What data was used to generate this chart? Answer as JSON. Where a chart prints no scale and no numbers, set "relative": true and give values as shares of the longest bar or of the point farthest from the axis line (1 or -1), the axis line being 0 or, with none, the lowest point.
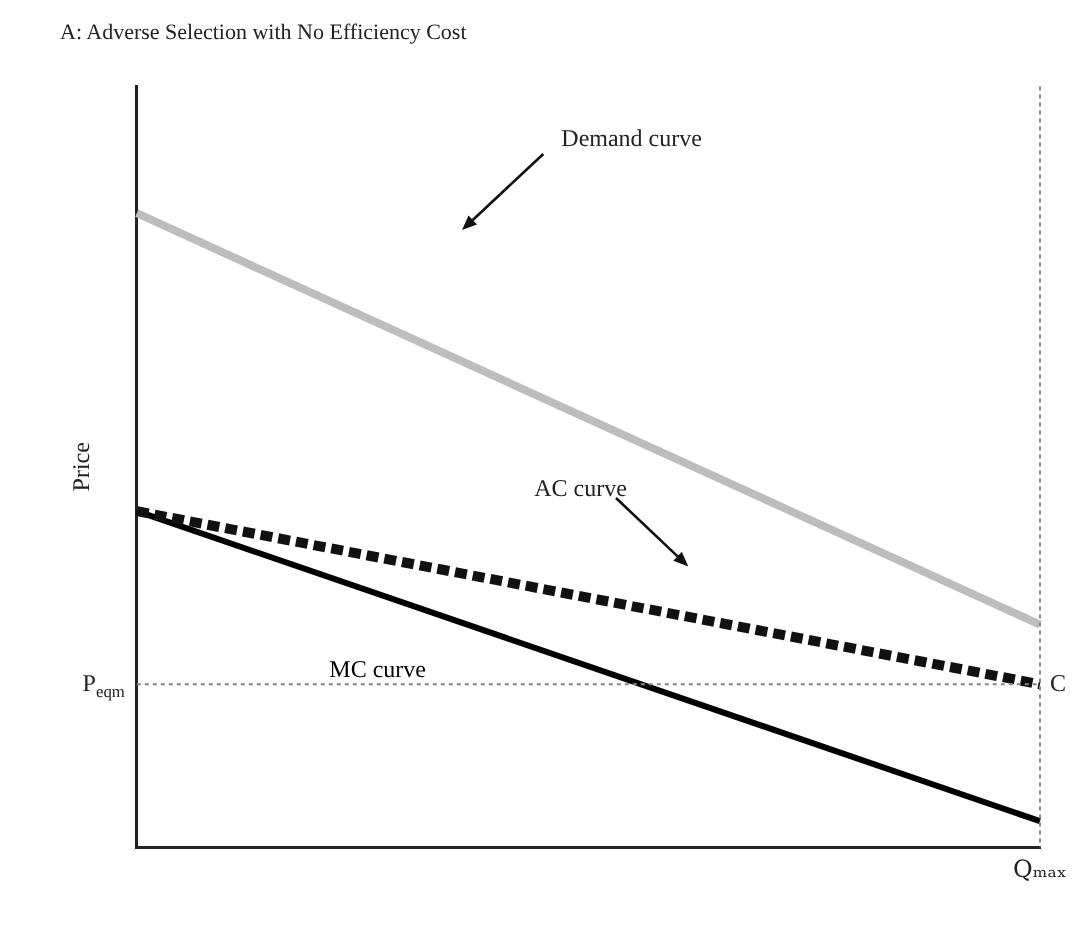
{
  "chart_data": {
    "type": "line",
    "title": "A: Adverse Selection with No Efficiency Cost",
    "ylabel": "Price",
    "relative": true,
    "categories": [
      null,
      null
    ],
    "series": [
      {
        "name": "Demand curve",
        "color": "#bdbdbd",
        "values": [
          1,
          0.351
        ],
        "line_style": "solid"
      },
      {
        "name": "AC curve",
        "color": "#111111",
        "values": [
          0.53,
          0.257
        ],
        "line_style": "dashed"
      },
      {
        "name": "MC curve",
        "color": "#000000",
        "values": [
          0.53,
          0.041
        ],
        "line_style": "solid"
      }
    ],
    "ref_lines": [
      {
        "axis": "y",
        "value": 0.257,
        "label": "P$_{eqm}$",
        "color": "#888888",
        "line_style": "dotted"
      },
      {
        "axis": "x",
        "label": "Qₘₐₓ",
        "color": "#888888",
        "line_style": "dotted"
      }
    ],
    "annotations": [
      "C"
    ],
    "marker": "none",
    "legend": false,
    "grid": false
  }
}
